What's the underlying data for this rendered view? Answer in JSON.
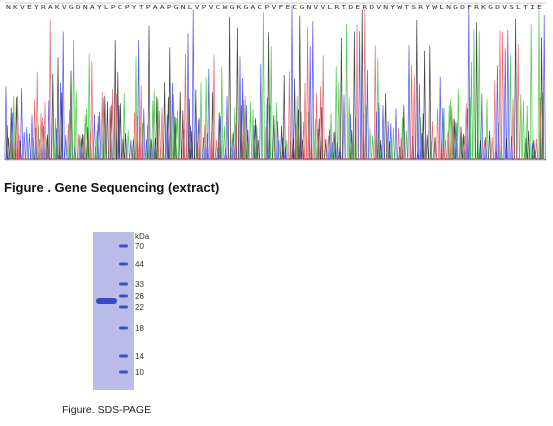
{
  "sequence": "NKVEYRAKVGDNAYLPCPYTPAAPGNLVPVCWGKGACPVFECGNVVLRTDERDVNYWTSRYWLNGDFRKGDVSLTIE",
  "figure1": {
    "caption": "Figure . Gene Sequencing (extract)"
  },
  "figure2": {
    "unit": "kDa",
    "markers": [
      "70",
      "44",
      "33",
      "26",
      "22",
      "18",
      "14",
      "10"
    ],
    "caption": "Figure. SDS-PAGE"
  }
}
